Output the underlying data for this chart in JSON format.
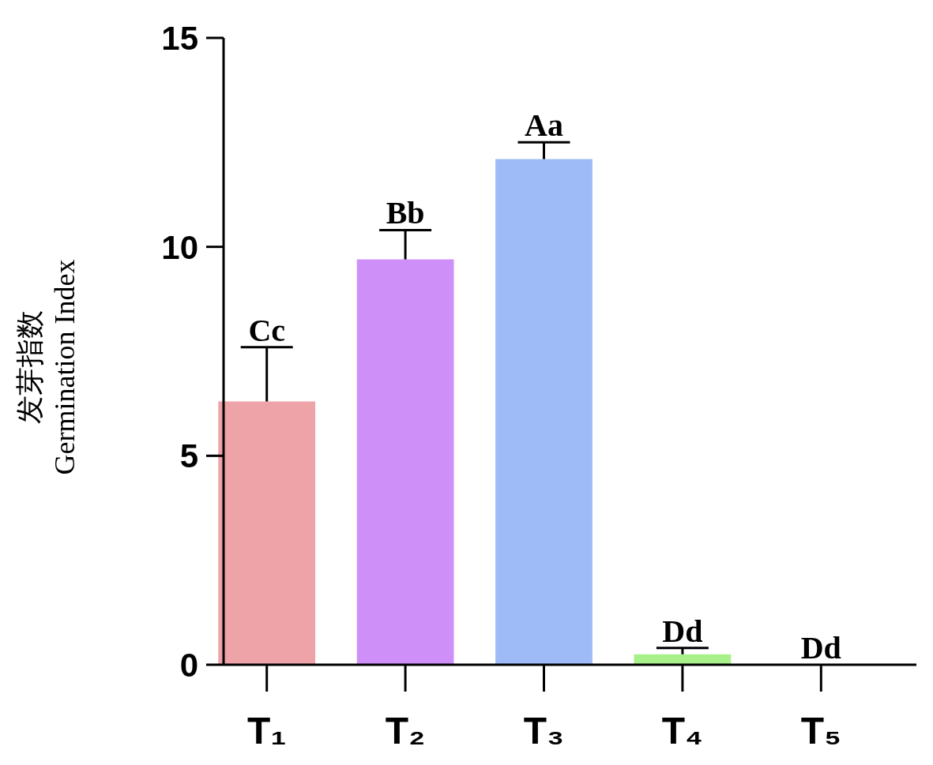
{
  "chart_data": {
    "type": "bar",
    "ylabel": "发芽指数\nGermination Index",
    "categories": [
      "T₁",
      "T₂",
      "T₃",
      "T₄",
      "T₅"
    ],
    "values": [
      6.3,
      9.7,
      12.1,
      0.25,
      0
    ],
    "colors": [
      "#eea3a8",
      "#cf8ff8",
      "#9fbbf7",
      "#a8f08a",
      null
    ],
    "errors": [
      [
        6.3,
        7.6
      ],
      [
        9.7,
        10.4
      ],
      [
        12.1,
        12.5
      ],
      [
        0.25,
        0.4
      ],
      null
    ],
    "ylim": [
      0,
      15
    ],
    "yticks": [
      0,
      5,
      10,
      15
    ],
    "grid": false,
    "annotations": [
      {
        "text": "Cc",
        "x": "T₁",
        "y": 7.6
      },
      {
        "text": "Bb",
        "x": "T₂",
        "y": 10.4
      },
      {
        "text": "Aa",
        "x": "T₃",
        "y": 12.5
      },
      {
        "text": "Dd",
        "x": "T₄",
        "y": 0.4
      },
      {
        "text": "Dd",
        "x": "T₅",
        "y": 0
      }
    ]
  }
}
